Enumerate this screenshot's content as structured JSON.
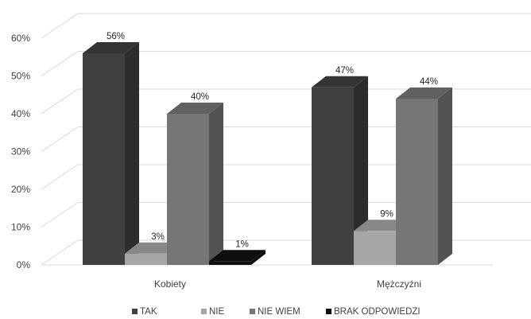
{
  "chart_data": {
    "type": "bar",
    "style": "3d-clustered-column",
    "categories": [
      "Kobiety",
      "Mężczyźni"
    ],
    "series": [
      {
        "name": "TAK",
        "values": [
          56,
          47
        ],
        "labels": [
          "56%",
          "47%"
        ],
        "color": "#404040"
      },
      {
        "name": "NIE",
        "values": [
          3,
          9
        ],
        "labels": [
          "3%",
          "9%"
        ],
        "color": "#a6a6a6"
      },
      {
        "name": "NIE WIEM",
        "values": [
          40,
          44
        ],
        "labels": [
          "40%",
          "44%"
        ],
        "color": "#767676"
      },
      {
        "name": "BRAK ODPOWIEDZI",
        "values": [
          1,
          0
        ],
        "labels": [
          "1%",
          ""
        ],
        "color": "#111111"
      }
    ],
    "y_ticks": [
      "0%",
      "10%",
      "20%",
      "30%",
      "40%",
      "50%",
      "60%"
    ],
    "ylim": [
      0,
      60
    ],
    "grid": true,
    "legend_position": "bottom"
  }
}
